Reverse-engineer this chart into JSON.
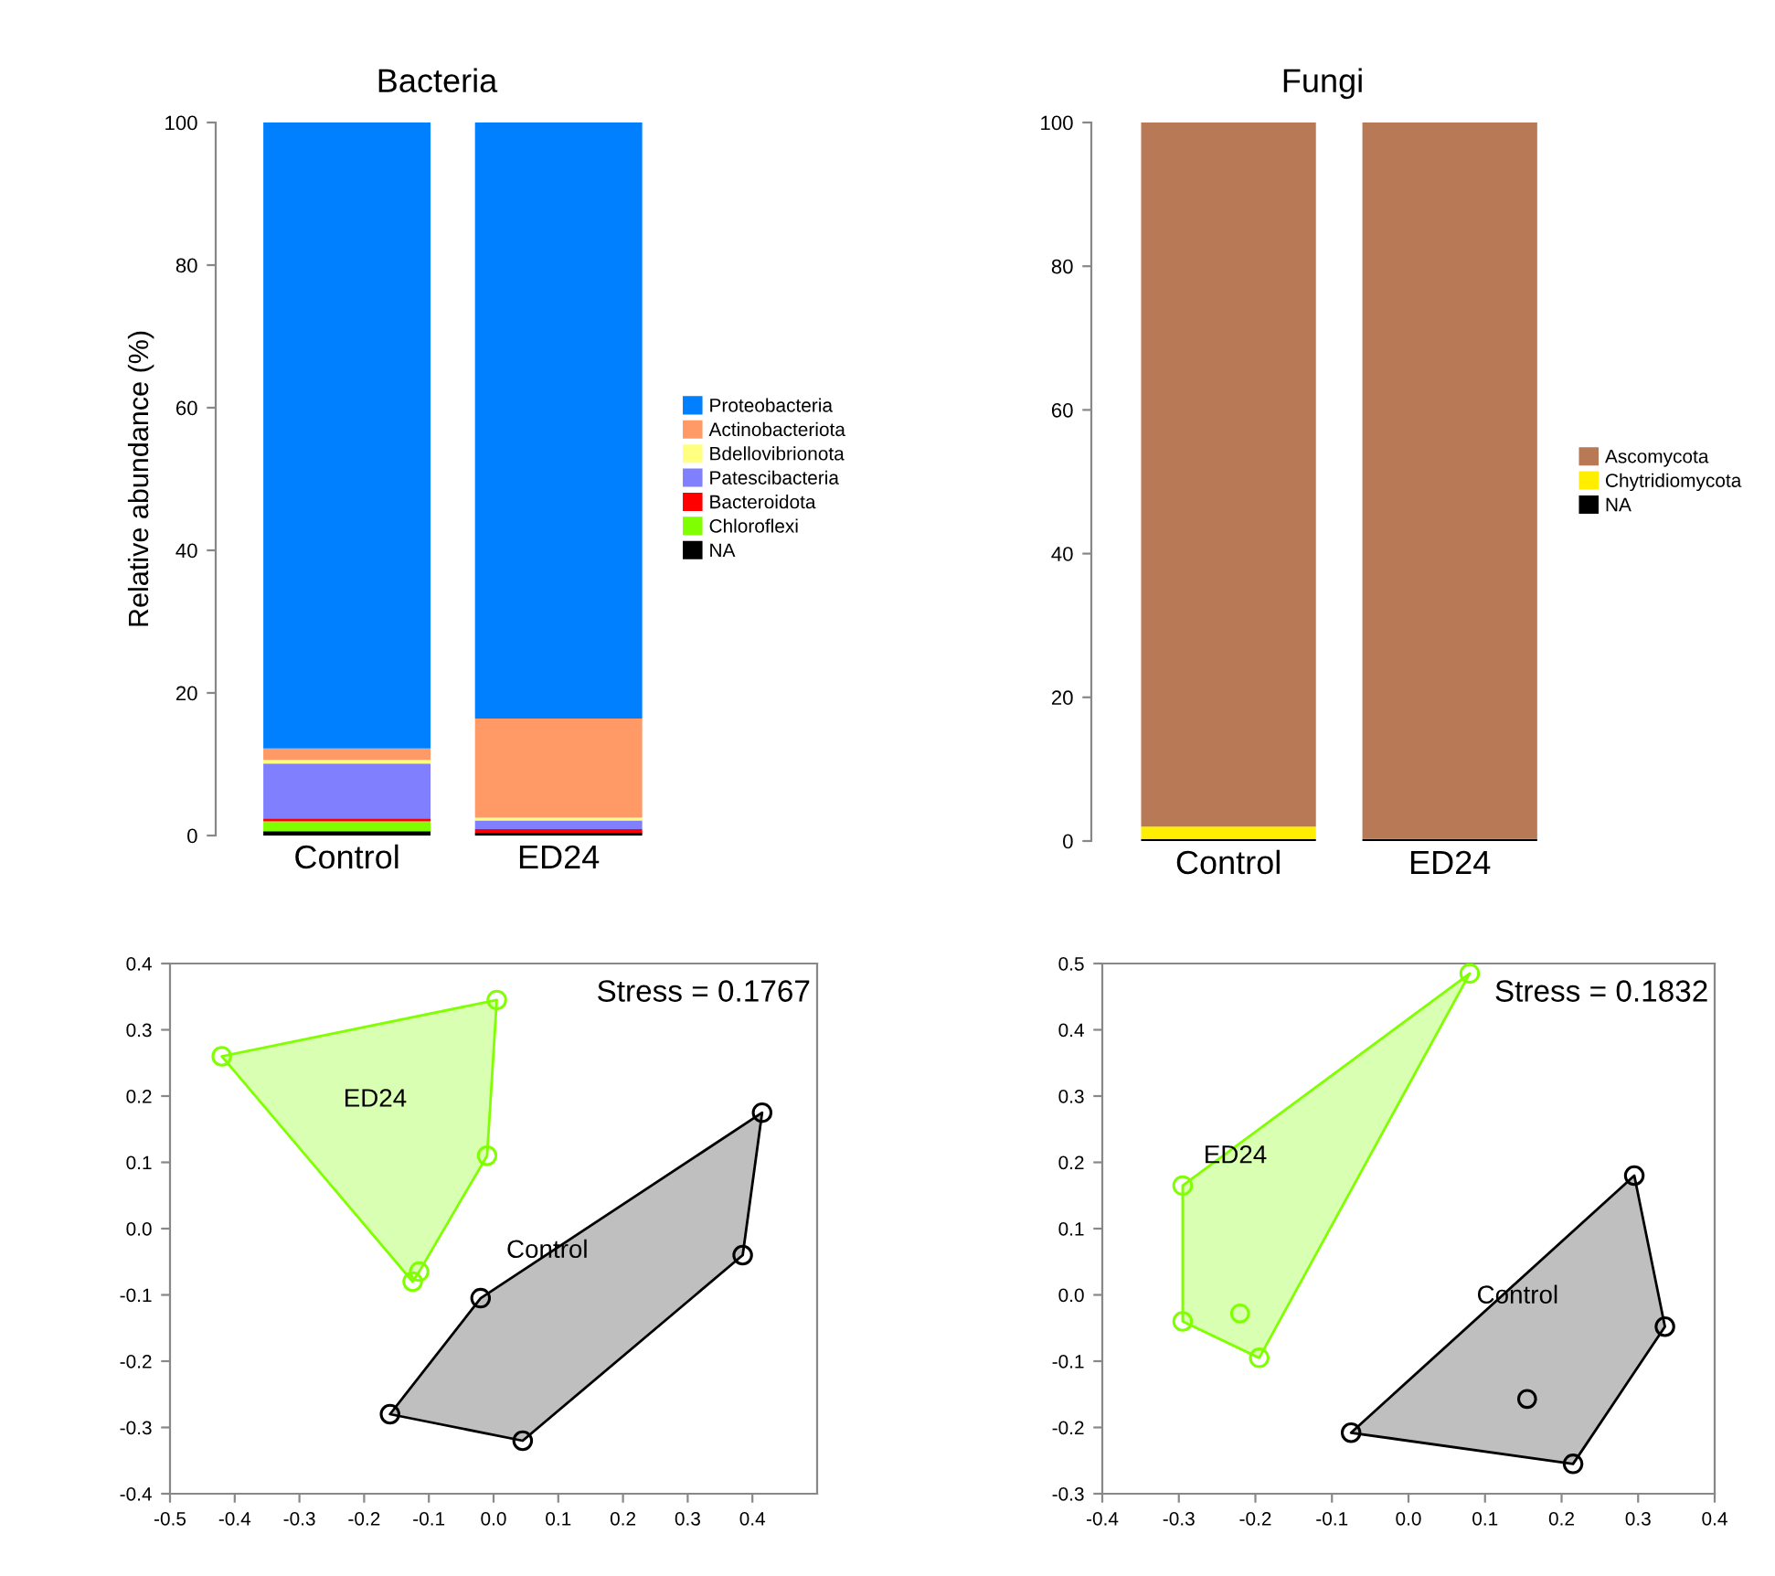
{
  "chart_data": [
    {
      "type": "bar",
      "title": "Bacteria",
      "ylabel": "Relative abundance (%)",
      "categories": [
        "Control",
        "ED24"
      ],
      "stacked": true,
      "legend": "right",
      "ylim": [
        0,
        100
      ],
      "yticks": [
        0,
        20,
        40,
        60,
        80,
        100
      ],
      "series": [
        {
          "name": "NA",
          "color": "#000000",
          "values": [
            0.6,
            0.4
          ]
        },
        {
          "name": "Chloroflexi",
          "color": "#80ff00",
          "values": [
            1.4,
            0
          ]
        },
        {
          "name": "Bacteroidota",
          "color": "#ff0000",
          "values": [
            0.4,
            0.5
          ]
        },
        {
          "name": "Patescibacteria",
          "color": "#8080ff",
          "values": [
            7.7,
            1.2
          ]
        },
        {
          "name": "Bdellovibrionota",
          "color": "#ffff80",
          "values": [
            0.5,
            0.4
          ]
        },
        {
          "name": "Actinobacteriota",
          "color": "#ff9966",
          "values": [
            1.6,
            13.9
          ]
        },
        {
          "name": "Proteobacteria",
          "color": "#0080ff",
          "values": [
            87.8,
            83.6
          ]
        }
      ]
    },
    {
      "type": "bar",
      "title": "Fungi",
      "categories": [
        "Control",
        "ED24"
      ],
      "stacked": true,
      "legend": "right",
      "ylim": [
        0,
        100
      ],
      "yticks": [
        0,
        20,
        40,
        60,
        80,
        100
      ],
      "series": [
        {
          "name": "NA",
          "color": "#000000",
          "values": [
            0.3,
            0.3
          ]
        },
        {
          "name": "Chytridiomycota",
          "color": "#ffee00",
          "values": [
            1.7,
            0
          ]
        },
        {
          "name": "Ascomycota",
          "color": "#b87a56",
          "values": [
            98.0,
            99.7
          ]
        }
      ]
    },
    {
      "type": "scatter",
      "marker": "circle",
      "xlim": [
        -0.5,
        0.5
      ],
      "ylim": [
        -0.4,
        0.4
      ],
      "xticks": [
        {
          "value": -0.5,
          "label": "-0.5"
        },
        {
          "value": -0.4,
          "label": "-0.4"
        },
        {
          "value": -0.3,
          "label": "-0.3"
        },
        {
          "value": -0.2,
          "label": "-0.2"
        },
        {
          "value": -0.1,
          "label": "-0.1"
        },
        {
          "value": 0,
          "label": "0.0"
        },
        {
          "value": 0.1,
          "label": "0.1"
        },
        {
          "value": 0.2,
          "label": "0.2"
        },
        {
          "value": 0.3,
          "label": "0.3"
        },
        {
          "value": 0.4,
          "label": "0.4"
        }
      ],
      "yticks": [
        {
          "value": -0.4,
          "label": "-0.4"
        },
        {
          "value": -0.3,
          "label": "-0.3"
        },
        {
          "value": -0.2,
          "label": "-0.2"
        },
        {
          "value": -0.1,
          "label": "-0.1"
        },
        {
          "value": 0,
          "label": "0.0"
        },
        {
          "value": 0.1,
          "label": "0.1"
        },
        {
          "value": 0.2,
          "label": "0.2"
        },
        {
          "value": 0.3,
          "label": "0.3"
        },
        {
          "value": 0.4,
          "label": "0.4"
        }
      ],
      "annotations": [
        "Stress = 0.1767"
      ],
      "series": [
        {
          "type": "area",
          "name": "ED24",
          "color": "#80ff00",
          "x": [
            -0.42,
            0.005,
            -0.01,
            -0.115,
            -0.125
          ],
          "values": [
            0.26,
            0.345,
            0.11,
            -0.065,
            -0.08
          ]
        },
        {
          "type": "area",
          "name": "Control",
          "color": "#000000",
          "x": [
            0.415,
            0.385,
            0.045,
            -0.16,
            -0.02
          ],
          "values": [
            0.175,
            -0.04,
            -0.32,
            -0.28,
            -0.105
          ]
        }
      ]
    },
    {
      "type": "scatter",
      "marker": "circle",
      "xlim": [
        -0.4,
        0.4
      ],
      "ylim": [
        -0.3,
        0.5
      ],
      "xticks": [
        {
          "value": -0.4,
          "label": "-0.4"
        },
        {
          "value": -0.3,
          "label": "-0.3"
        },
        {
          "value": -0.2,
          "label": "-0.2"
        },
        {
          "value": -0.1,
          "label": "-0.1"
        },
        {
          "value": 0,
          "label": "0.0"
        },
        {
          "value": 0.1,
          "label": "0.1"
        },
        {
          "value": 0.2,
          "label": "0.2"
        },
        {
          "value": 0.3,
          "label": "0.3"
        },
        {
          "value": 0.4,
          "label": "0.4"
        }
      ],
      "yticks": [
        {
          "value": -0.3,
          "label": "-0.3"
        },
        {
          "value": -0.2,
          "label": "-0.2"
        },
        {
          "value": -0.1,
          "label": "-0.1"
        },
        {
          "value": 0,
          "label": "0.0"
        },
        {
          "value": 0.1,
          "label": "0.1"
        },
        {
          "value": 0.2,
          "label": "0.2"
        },
        {
          "value": 0.3,
          "label": "0.3"
        },
        {
          "value": 0.4,
          "label": "0.4"
        },
        {
          "value": 0.5,
          "label": "0.5"
        }
      ],
      "annotations": [
        "Stress = 0.1832"
      ],
      "series": [
        {
          "type": "area",
          "name": "ED24",
          "color": "#80ff00",
          "x": [
            0.08,
            -0.295,
            -0.295,
            -0.195
          ],
          "values": [
            0.485,
            0.165,
            -0.04,
            -0.095
          ]
        },
        {
          "type": "area",
          "name": "Control",
          "color": "#000000",
          "x": [
            0.295,
            0.335,
            0.215,
            -0.075
          ],
          "values": [
            0.18,
            -0.048,
            -0.255,
            -0.208
          ]
        },
        {
          "color": "#80ff00",
          "x": [
            -0.22
          ],
          "values": [
            -0.028
          ]
        },
        {
          "color": "#000000",
          "x": [
            0.155
          ],
          "values": [
            -0.157
          ]
        }
      ]
    }
  ]
}
